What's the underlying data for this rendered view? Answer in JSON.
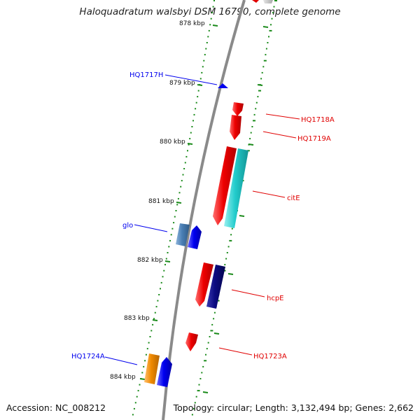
{
  "title": "Haloquadratum walsbyi DSM 16790, complete genome",
  "accession": "Accession: NC_008212",
  "topology": "Topology: circular; Length: 3,132,494 bp; Genes: 2,662",
  "colors": {
    "forward": "#e00000",
    "reverse": "#0000ee",
    "backbone": "#8a8a8a",
    "ticks": "#1a8a1a",
    "cyan": "#22cccc",
    "steelblue": "#4a7fb5",
    "navy": "#0a0a80",
    "orange": "#f08a00"
  },
  "ticks": [
    {
      "label": "878 kbp",
      "kbp": 878
    },
    {
      "label": "879 kbp",
      "kbp": 879
    },
    {
      "label": "880 kbp",
      "kbp": 880
    },
    {
      "label": "881 kbp",
      "kbp": 881
    },
    {
      "label": "882 kbp",
      "kbp": 882
    },
    {
      "label": "883 kbp",
      "kbp": 883
    },
    {
      "label": "884 kbp",
      "kbp": 884
    }
  ],
  "genes": [
    {
      "label": "HQ1717H",
      "strand": "reverse"
    },
    {
      "label": "HQ1718A",
      "strand": "forward"
    },
    {
      "label": "HQ1719A",
      "strand": "forward"
    },
    {
      "label": "citE",
      "strand": "forward"
    },
    {
      "label": "glo",
      "strand": "reverse"
    },
    {
      "label": "hcpE",
      "strand": "forward"
    },
    {
      "label": "HQ1723A",
      "strand": "forward"
    },
    {
      "label": "HQ1724A",
      "strand": "reverse"
    }
  ]
}
